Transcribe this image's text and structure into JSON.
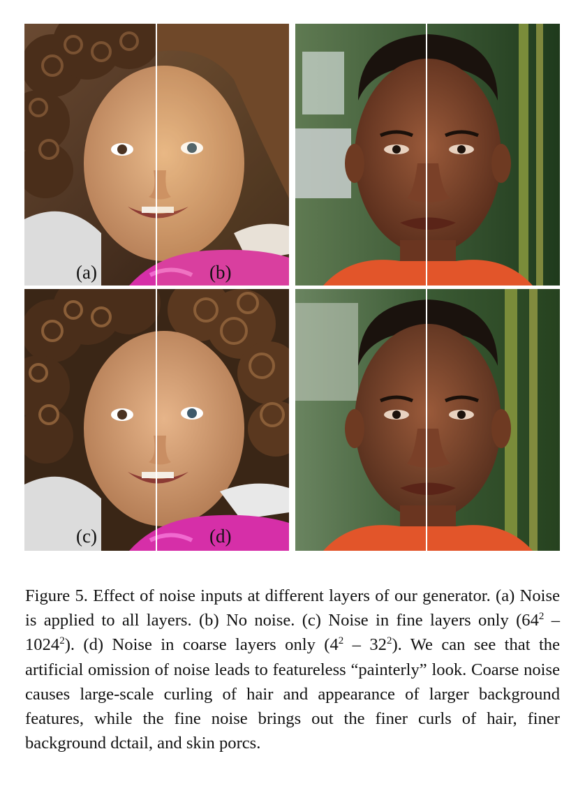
{
  "panels": {
    "a": "(a)",
    "b": "(b)",
    "c": "(c)",
    "d": "(d)"
  },
  "images": [
    {
      "subject": "child with curly hair",
      "left_half": "noise applied to all layers",
      "right_half": "no noise"
    },
    {
      "subject": "young man",
      "left_half": "noise applied to all layers",
      "right_half": "no noise"
    },
    {
      "subject": "child with curly hair",
      "left_half": "noise in fine layers only",
      "right_half": "noise in coarse layers only"
    },
    {
      "subject": "young man",
      "left_half": "noise in fine layers only",
      "right_half": "noise in coarse layers only"
    }
  ],
  "caption": {
    "lead": "Figure 5. Effect of noise inputs at different layers of our generator. (a) Noise is applied to all layers. (b) No noise. (c) Noise in fine layers only (64",
    "exp1": "2",
    "mid1": " – 1024",
    "exp2": "2",
    "mid2": "). (d) Noise in coarse layers only (4",
    "exp3": "2",
    "mid3": " – 32",
    "exp4": "2",
    "tail": "). We can see that the artificial omission of noise leads to featureless “painterly” look. Coarse noise causes large-scale curling of hair and appearance of larger background features, while the fine noise brings out the finer curls of hair, finer background dctail, and skin porcs."
  }
}
